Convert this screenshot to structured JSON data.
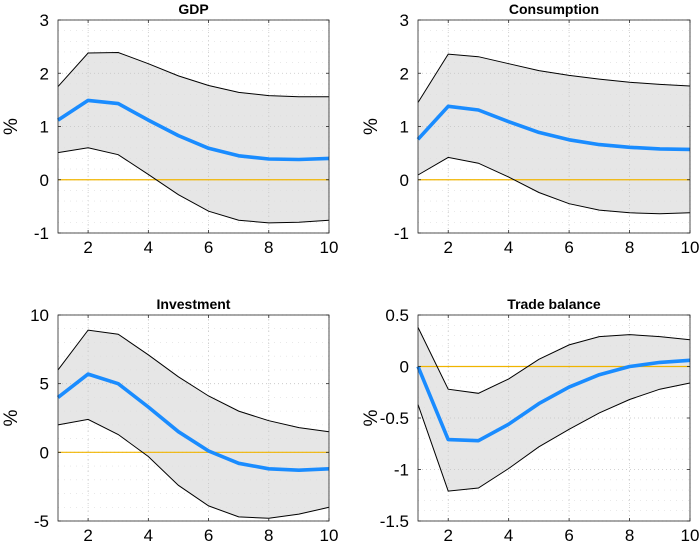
{
  "chart_data": [
    {
      "type": "line",
      "title": "GDP",
      "ylabel": "%",
      "xlim": [
        1,
        10
      ],
      "ylim": [
        -1,
        3
      ],
      "xticks": [
        2,
        4,
        6,
        8,
        10
      ],
      "yticks": [
        -1,
        0,
        1,
        2,
        3
      ],
      "ytick_labels": [
        "-1",
        "0",
        "1",
        "2",
        "3"
      ],
      "x": [
        1,
        2,
        3,
        4,
        5,
        6,
        7,
        8,
        9,
        10
      ],
      "series": [
        {
          "role": "upper",
          "values": [
            1.75,
            2.38,
            2.39,
            2.18,
            1.95,
            1.77,
            1.64,
            1.58,
            1.56,
            1.56
          ]
        },
        {
          "role": "median",
          "values": [
            1.12,
            1.49,
            1.43,
            1.12,
            0.83,
            0.59,
            0.45,
            0.39,
            0.38,
            0.4
          ]
        },
        {
          "role": "lower",
          "values": [
            0.51,
            0.6,
            0.47,
            0.1,
            -0.28,
            -0.59,
            -0.76,
            -0.81,
            -0.8,
            -0.76
          ]
        }
      ],
      "zero_line": 0,
      "colors": {
        "median": "#1a8cff",
        "band": "#e6e6e6",
        "zero": "#f0b400",
        "bounds": "#000000"
      },
      "grid": true
    },
    {
      "type": "line",
      "title": "Consumption",
      "ylabel": "%",
      "xlim": [
        1,
        10
      ],
      "ylim": [
        -1,
        3
      ],
      "xticks": [
        2,
        4,
        6,
        8,
        10
      ],
      "yticks": [
        -1,
        0,
        1,
        2,
        3
      ],
      "ytick_labels": [
        "-1",
        "0",
        "1",
        "2",
        "3"
      ],
      "x": [
        1,
        2,
        3,
        4,
        5,
        6,
        7,
        8,
        9,
        10
      ],
      "series": [
        {
          "role": "upper",
          "values": [
            1.45,
            2.36,
            2.31,
            2.18,
            2.05,
            1.96,
            1.89,
            1.83,
            1.79,
            1.76
          ]
        },
        {
          "role": "median",
          "values": [
            0.76,
            1.38,
            1.31,
            1.09,
            0.89,
            0.75,
            0.66,
            0.61,
            0.58,
            0.57
          ]
        },
        {
          "role": "lower",
          "values": [
            0.09,
            0.42,
            0.31,
            0.05,
            -0.24,
            -0.45,
            -0.57,
            -0.62,
            -0.64,
            -0.62
          ]
        }
      ],
      "zero_line": 0,
      "colors": {
        "median": "#1a8cff",
        "band": "#e6e6e6",
        "zero": "#f0b400",
        "bounds": "#000000"
      },
      "grid": true
    },
    {
      "type": "line",
      "title": "Investment",
      "ylabel": "%",
      "xlim": [
        1,
        10
      ],
      "ylim": [
        -5,
        10
      ],
      "xticks": [
        2,
        4,
        6,
        8,
        10
      ],
      "yticks": [
        -5,
        0,
        5,
        10
      ],
      "ytick_labels": [
        "-5",
        "0",
        "5",
        "10"
      ],
      "x": [
        1,
        2,
        3,
        4,
        5,
        6,
        7,
        8,
        9,
        10
      ],
      "series": [
        {
          "role": "upper",
          "values": [
            6.0,
            8.9,
            8.6,
            7.1,
            5.5,
            4.1,
            3.0,
            2.3,
            1.8,
            1.5
          ]
        },
        {
          "role": "median",
          "values": [
            4.0,
            5.7,
            5.0,
            3.3,
            1.5,
            0.1,
            -0.8,
            -1.2,
            -1.3,
            -1.2
          ]
        },
        {
          "role": "lower",
          "values": [
            2.0,
            2.4,
            1.3,
            -0.3,
            -2.4,
            -3.9,
            -4.7,
            -4.8,
            -4.5,
            -4.0
          ]
        }
      ],
      "zero_line": 0,
      "colors": {
        "median": "#1a8cff",
        "band": "#e6e6e6",
        "zero": "#f0b400",
        "bounds": "#000000"
      },
      "grid": true
    },
    {
      "type": "line",
      "title": "Trade balance",
      "ylabel": "%",
      "xlim": [
        1,
        10
      ],
      "ylim": [
        -1.5,
        0.5
      ],
      "xticks": [
        2,
        4,
        6,
        8,
        10
      ],
      "yticks": [
        -1.5,
        -1,
        -0.5,
        0,
        0.5
      ],
      "ytick_labels": [
        "-1.5",
        "-1",
        "-0.5",
        "0",
        "0.5"
      ],
      "x": [
        1,
        2,
        3,
        4,
        5,
        6,
        7,
        8,
        9,
        10
      ],
      "series": [
        {
          "role": "upper",
          "values": [
            0.38,
            -0.22,
            -0.26,
            -0.12,
            0.07,
            0.21,
            0.29,
            0.31,
            0.29,
            0.26
          ]
        },
        {
          "role": "median",
          "values": [
            0.0,
            -0.71,
            -0.72,
            -0.56,
            -0.36,
            -0.2,
            -0.08,
            0.0,
            0.04,
            0.06
          ]
        },
        {
          "role": "lower",
          "values": [
            -0.37,
            -1.21,
            -1.18,
            -0.99,
            -0.78,
            -0.61,
            -0.45,
            -0.32,
            -0.22,
            -0.16
          ]
        }
      ],
      "zero_line": 0,
      "colors": {
        "median": "#1a8cff",
        "band": "#e6e6e6",
        "zero": "#f0b400",
        "bounds": "#000000"
      },
      "grid": true
    }
  ]
}
